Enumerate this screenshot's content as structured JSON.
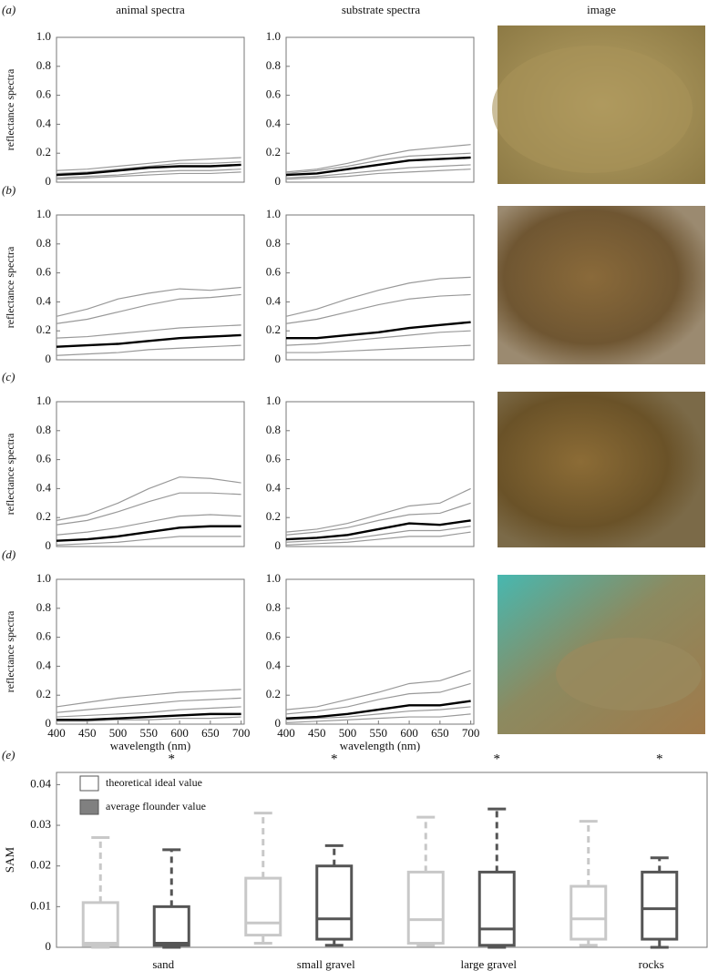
{
  "column_headers": [
    "animal spectra",
    "substrate spectra",
    "image"
  ],
  "panel_labels": [
    "(a)",
    "(b)",
    "(c)",
    "(d)",
    "(e)"
  ],
  "chart_data": [
    {
      "type": "line",
      "ylabel": "reflectance spectra",
      "x": [
        400,
        450,
        500,
        550,
        600,
        650,
        700
      ],
      "xlim": [
        400,
        705
      ],
      "ylim": [
        0,
        1
      ],
      "yticks": [
        0,
        0.2,
        0.4,
        0.6,
        0.8,
        {
          "value": 1,
          "label": "1.0"
        }
      ],
      "series": [
        {
          "color": "#999999",
          "values": [
            0.08,
            0.09,
            0.11,
            0.13,
            0.15,
            0.16,
            0.17
          ]
        },
        {
          "color": "#999999",
          "values": [
            0.03,
            0.04,
            0.05,
            0.07,
            0.08,
            0.08,
            0.09
          ]
        },
        {
          "color": "#999999",
          "values": [
            0.06,
            0.07,
            0.09,
            0.11,
            0.13,
            0.13,
            0.14
          ]
        },
        {
          "color": "#999999",
          "values": [
            0.02,
            0.03,
            0.04,
            0.05,
            0.06,
            0.06,
            0.07
          ]
        },
        {
          "color": "#000000",
          "values": [
            0.05,
            0.06,
            0.08,
            0.1,
            0.11,
            0.11,
            0.12
          ]
        }
      ]
    },
    {
      "type": "line",
      "x": [
        400,
        450,
        500,
        550,
        600,
        650,
        700
      ],
      "xlim": [
        400,
        705
      ],
      "ylim": [
        0,
        1
      ],
      "yticks": [
        0,
        0.2,
        0.4,
        0.6,
        0.8,
        {
          "value": 1,
          "label": "1.0"
        }
      ],
      "series": [
        {
          "color": "#999999",
          "values": [
            0.07,
            0.09,
            0.13,
            0.18,
            0.22,
            0.24,
            0.26
          ]
        },
        {
          "color": "#999999",
          "values": [
            0.03,
            0.04,
            0.06,
            0.08,
            0.1,
            0.11,
            0.12
          ]
        },
        {
          "color": "#999999",
          "values": [
            0.06,
            0.08,
            0.11,
            0.15,
            0.18,
            0.19,
            0.2
          ]
        },
        {
          "color": "#999999",
          "values": [
            0.02,
            0.03,
            0.04,
            0.06,
            0.07,
            0.08,
            0.09
          ]
        },
        {
          "color": "#000000",
          "values": [
            0.05,
            0.06,
            0.09,
            0.12,
            0.15,
            0.16,
            0.17
          ]
        }
      ]
    },
    {
      "type": "line",
      "ylabel": "reflectance spectra",
      "x": [
        400,
        450,
        500,
        550,
        600,
        650,
        700
      ],
      "xlim": [
        400,
        705
      ],
      "ylim": [
        0,
        1
      ],
      "yticks": [
        0,
        0.2,
        0.4,
        0.6,
        0.8,
        {
          "value": 1,
          "label": "1.0"
        }
      ],
      "series": [
        {
          "color": "#999999",
          "values": [
            0.3,
            0.35,
            0.42,
            0.46,
            0.49,
            0.48,
            0.5
          ]
        },
        {
          "color": "#999999",
          "values": [
            0.25,
            0.28,
            0.33,
            0.38,
            0.42,
            0.43,
            0.45
          ]
        },
        {
          "color": "#999999",
          "values": [
            0.15,
            0.16,
            0.18,
            0.2,
            0.22,
            0.23,
            0.24
          ]
        },
        {
          "color": "#999999",
          "values": [
            0.03,
            0.04,
            0.05,
            0.07,
            0.08,
            0.09,
            0.1
          ]
        },
        {
          "color": "#000000",
          "values": [
            0.09,
            0.1,
            0.11,
            0.13,
            0.15,
            0.16,
            0.17
          ]
        }
      ]
    },
    {
      "type": "line",
      "x": [
        400,
        450,
        500,
        550,
        600,
        650,
        700
      ],
      "xlim": [
        400,
        705
      ],
      "ylim": [
        0,
        1
      ],
      "yticks": [
        0,
        0.2,
        0.4,
        0.6,
        0.8,
        {
          "value": 1,
          "label": "1.0"
        }
      ],
      "series": [
        {
          "color": "#999999",
          "values": [
            0.3,
            0.35,
            0.42,
            0.48,
            0.53,
            0.56,
            0.57
          ]
        },
        {
          "color": "#999999",
          "values": [
            0.25,
            0.28,
            0.33,
            0.38,
            0.42,
            0.44,
            0.45
          ]
        },
        {
          "color": "#999999",
          "values": [
            0.1,
            0.11,
            0.13,
            0.15,
            0.17,
            0.19,
            0.2
          ]
        },
        {
          "color": "#999999",
          "values": [
            0.05,
            0.05,
            0.06,
            0.07,
            0.08,
            0.09,
            0.1
          ]
        },
        {
          "color": "#000000",
          "values": [
            0.15,
            0.15,
            0.17,
            0.19,
            0.22,
            0.24,
            0.26
          ]
        }
      ]
    },
    {
      "type": "line",
      "ylabel": "reflectance spectra",
      "x": [
        400,
        450,
        500,
        550,
        600,
        650,
        700
      ],
      "xlim": [
        400,
        705
      ],
      "ylim": [
        0,
        1
      ],
      "yticks": [
        0,
        0.2,
        0.4,
        0.6,
        0.8,
        {
          "value": 1,
          "label": "1.0"
        }
      ],
      "series": [
        {
          "color": "#999999",
          "values": [
            0.18,
            0.22,
            0.3,
            0.4,
            0.48,
            0.47,
            0.44
          ]
        },
        {
          "color": "#999999",
          "values": [
            0.15,
            0.18,
            0.24,
            0.31,
            0.37,
            0.37,
            0.36
          ]
        },
        {
          "color": "#999999",
          "values": [
            0.08,
            0.1,
            0.13,
            0.17,
            0.21,
            0.22,
            0.21
          ]
        },
        {
          "color": "#999999",
          "values": [
            0.01,
            0.02,
            0.03,
            0.05,
            0.07,
            0.07,
            0.07
          ]
        },
        {
          "color": "#000000",
          "values": [
            0.04,
            0.05,
            0.07,
            0.1,
            0.13,
            0.14,
            0.14
          ]
        }
      ]
    },
    {
      "type": "line",
      "x": [
        400,
        450,
        500,
        550,
        600,
        650,
        700
      ],
      "xlim": [
        400,
        705
      ],
      "ylim": [
        0,
        1
      ],
      "yticks": [
        0,
        0.2,
        0.4,
        0.6,
        0.8,
        {
          "value": 1,
          "label": "1.0"
        }
      ],
      "series": [
        {
          "color": "#999999",
          "values": [
            0.1,
            0.12,
            0.16,
            0.22,
            0.28,
            0.3,
            0.4
          ]
        },
        {
          "color": "#999999",
          "values": [
            0.08,
            0.1,
            0.13,
            0.18,
            0.22,
            0.23,
            0.3
          ]
        },
        {
          "color": "#999999",
          "values": [
            0.03,
            0.04,
            0.05,
            0.08,
            0.11,
            0.11,
            0.14
          ]
        },
        {
          "color": "#999999",
          "values": [
            0.01,
            0.02,
            0.03,
            0.05,
            0.07,
            0.07,
            0.1
          ]
        },
        {
          "color": "#000000",
          "values": [
            0.05,
            0.06,
            0.08,
            0.12,
            0.16,
            0.15,
            0.18
          ]
        }
      ]
    },
    {
      "type": "line",
      "ylabel": "reflectance spectra",
      "xlabel": "wavelength (nm)",
      "x": [
        400,
        450,
        500,
        550,
        600,
        650,
        700
      ],
      "xlim": [
        400,
        705
      ],
      "ylim": [
        0,
        1
      ],
      "xticks": [
        400,
        450,
        500,
        550,
        600,
        650,
        700
      ],
      "yticks": [
        0,
        0.2,
        0.4,
        0.6,
        0.8,
        {
          "value": 1,
          "label": "1.0"
        }
      ],
      "series": [
        {
          "color": "#999999",
          "values": [
            0.12,
            0.15,
            0.18,
            0.2,
            0.22,
            0.23,
            0.24
          ]
        },
        {
          "color": "#999999",
          "values": [
            0.08,
            0.1,
            0.12,
            0.14,
            0.16,
            0.17,
            0.18
          ]
        },
        {
          "color": "#999999",
          "values": [
            0.05,
            0.06,
            0.07,
            0.08,
            0.1,
            0.11,
            0.12
          ]
        },
        {
          "color": "#999999",
          "values": [
            0.02,
            0.02,
            0.03,
            0.03,
            0.04,
            0.04,
            0.05
          ]
        },
        {
          "color": "#000000",
          "values": [
            0.03,
            0.03,
            0.04,
            0.05,
            0.06,
            0.07,
            0.07
          ]
        }
      ]
    },
    {
      "type": "line",
      "xlabel": "wavelength (nm)",
      "x": [
        400,
        450,
        500,
        550,
        600,
        650,
        700
      ],
      "xlim": [
        400,
        705
      ],
      "ylim": [
        0,
        1
      ],
      "xticks": [
        400,
        450,
        500,
        550,
        600,
        650,
        700
      ],
      "yticks": [
        0,
        0.2,
        0.4,
        0.6,
        0.8,
        {
          "value": 1,
          "label": "1.0"
        }
      ],
      "series": [
        {
          "color": "#999999",
          "values": [
            0.1,
            0.12,
            0.17,
            0.22,
            0.28,
            0.3,
            0.37
          ]
        },
        {
          "color": "#999999",
          "values": [
            0.07,
            0.09,
            0.12,
            0.17,
            0.21,
            0.22,
            0.28
          ]
        },
        {
          "color": "#999999",
          "values": [
            0.03,
            0.04,
            0.05,
            0.07,
            0.09,
            0.1,
            0.12
          ]
        },
        {
          "color": "#999999",
          "values": [
            0.01,
            0.02,
            0.03,
            0.04,
            0.05,
            0.05,
            0.07
          ]
        },
        {
          "color": "#000000",
          "values": [
            0.04,
            0.05,
            0.07,
            0.1,
            0.13,
            0.13,
            0.16
          ]
        }
      ]
    },
    {
      "type": "box",
      "ylabel": "SAM",
      "categories": [
        "sand",
        "small gravel",
        "large gravel",
        "rocks"
      ],
      "annotations": [
        "*",
        "*",
        "*",
        "*"
      ],
      "ylim": [
        0,
        0.043
      ],
      "yticks": [
        0,
        0.01,
        0.02,
        0.03,
        0.04
      ],
      "series": [
        {
          "name": "theoretical ideal value",
          "color": "#c8c8c8",
          "legend_color": "#ffffff",
          "values": [
            {
              "min": 0,
              "q1": 0.0005,
              "median": 0.001,
              "q3": 0.011,
              "max": 0.027
            },
            {
              "min": 0.001,
              "q1": 0.003,
              "median": 0.006,
              "q3": 0.017,
              "max": 0.033
            },
            {
              "min": 0.0005,
              "q1": 0.001,
              "median": 0.0068,
              "q3": 0.0185,
              "max": 0.032
            },
            {
              "min": 0.0005,
              "q1": 0.002,
              "median": 0.007,
              "q3": 0.015,
              "max": 0.031
            }
          ]
        },
        {
          "name": "average flounder value",
          "color": "#555555",
          "legend_color": "#808080",
          "values": [
            {
              "min": 0,
              "q1": 0.0005,
              "median": 0.001,
              "q3": 0.01,
              "max": 0.024
            },
            {
              "min": 0.0005,
              "q1": 0.002,
              "median": 0.007,
              "q3": 0.02,
              "max": 0.025
            },
            {
              "min": 0,
              "q1": 0.0005,
              "median": 0.0045,
              "q3": 0.0185,
              "max": 0.034
            },
            {
              "min": 0,
              "q1": 0.002,
              "median": 0.0095,
              "q3": 0.0185,
              "max": 0.022
            }
          ]
        }
      ]
    }
  ]
}
